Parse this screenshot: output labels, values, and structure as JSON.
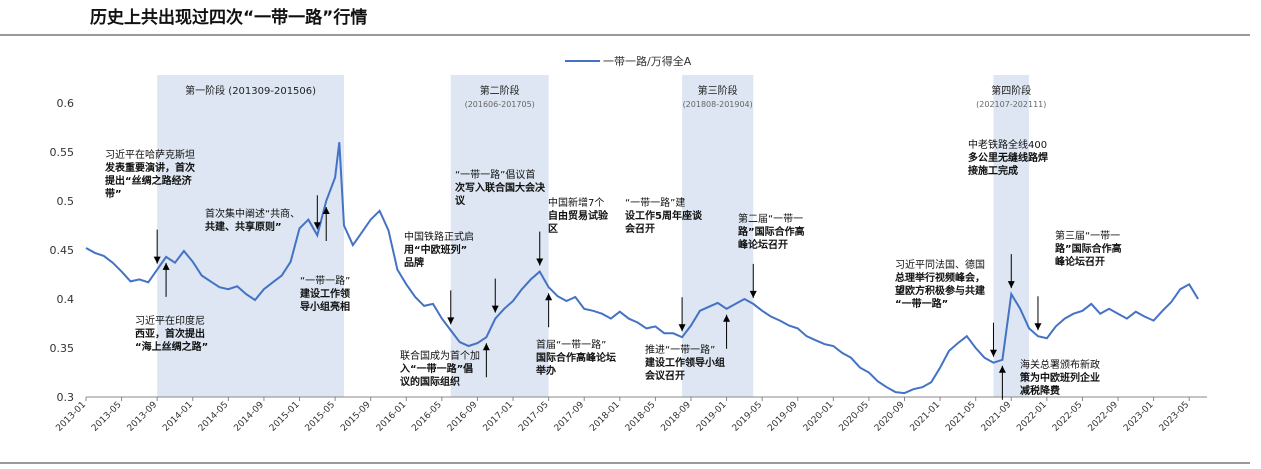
{
  "title": "历史上共出现过四次“一带一路”行情",
  "chart_data": {
    "type": "line",
    "legend": {
      "label": "一带一路/万得全A",
      "position": "top-center"
    },
    "ylim": [
      0.3,
      0.6
    ],
    "yticks": [
      "0.3",
      "0.35",
      "0.4",
      "0.45",
      "0.5",
      "0.55",
      "0.6"
    ],
    "xlim": [
      "2013-01",
      "2023-07"
    ],
    "xticks": [
      "2013-01",
      "2013-05",
      "2013-09",
      "2014-01",
      "2014-05",
      "2014-09",
      "2015-01",
      "2015-05",
      "2015-09",
      "2016-01",
      "2016-05",
      "2016-09",
      "2017-01",
      "2017-05",
      "2017-09",
      "2018-01",
      "2018-05",
      "2018-09",
      "2019-01",
      "2019-05",
      "2019-09",
      "2020-01",
      "2020-05",
      "2020-09",
      "2021-01",
      "2021-05",
      "2021-09",
      "2022-01",
      "2022-05",
      "2022-09",
      "2023-01",
      "2023-05"
    ],
    "series": [
      {
        "name": "一带一路/万得全A",
        "color": "#4472C4",
        "points": [
          [
            "2013-01",
            0.452
          ],
          [
            "2013-02",
            0.447
          ],
          [
            "2013-03",
            0.444
          ],
          [
            "2013-04",
            0.437
          ],
          [
            "2013-05",
            0.428
          ],
          [
            "2013-06",
            0.418
          ],
          [
            "2013-07",
            0.42
          ],
          [
            "2013-08",
            0.417
          ],
          [
            "2013-09",
            0.43
          ],
          [
            "2013-10",
            0.443
          ],
          [
            "2013-11",
            0.437
          ],
          [
            "2013-12",
            0.449
          ],
          [
            "2014-01",
            0.438
          ],
          [
            "2014-02",
            0.424
          ],
          [
            "2014-03",
            0.418
          ],
          [
            "2014-04",
            0.412
          ],
          [
            "2014-05",
            0.41
          ],
          [
            "2014-06",
            0.413
          ],
          [
            "2014-07",
            0.405
          ],
          [
            "2014-08",
            0.399
          ],
          [
            "2014-09",
            0.41
          ],
          [
            "2014-10",
            0.417
          ],
          [
            "2014-11",
            0.424
          ],
          [
            "2014-12",
            0.438
          ],
          [
            "2015-01",
            0.472
          ],
          [
            "2015-02",
            0.481
          ],
          [
            "2015-03",
            0.465
          ],
          [
            "2015-04",
            0.5
          ],
          [
            "2015-05",
            0.524
          ],
          [
            "2015-05-15",
            0.56
          ],
          [
            "2015-06",
            0.475
          ],
          [
            "2015-07",
            0.455
          ],
          [
            "2015-08",
            0.468
          ],
          [
            "2015-09",
            0.481
          ],
          [
            "2015-10",
            0.49
          ],
          [
            "2015-11",
            0.47
          ],
          [
            "2015-12",
            0.43
          ],
          [
            "2016-01",
            0.415
          ],
          [
            "2016-02",
            0.402
          ],
          [
            "2016-03",
            0.393
          ],
          [
            "2016-04",
            0.395
          ],
          [
            "2016-05",
            0.38
          ],
          [
            "2016-06",
            0.368
          ],
          [
            "2016-07",
            0.356
          ],
          [
            "2016-08",
            0.352
          ],
          [
            "2016-09",
            0.355
          ],
          [
            "2016-10",
            0.361
          ],
          [
            "2016-11",
            0.38
          ],
          [
            "2016-12",
            0.39
          ],
          [
            "2017-01",
            0.398
          ],
          [
            "2017-02",
            0.41
          ],
          [
            "2017-03",
            0.42
          ],
          [
            "2017-04",
            0.428
          ],
          [
            "2017-05",
            0.412
          ],
          [
            "2017-06",
            0.403
          ],
          [
            "2017-07",
            0.398
          ],
          [
            "2017-08",
            0.402
          ],
          [
            "2017-09",
            0.39
          ],
          [
            "2017-10",
            0.388
          ],
          [
            "2017-11",
            0.385
          ],
          [
            "2017-12",
            0.38
          ],
          [
            "2018-01",
            0.387
          ],
          [
            "2018-02",
            0.38
          ],
          [
            "2018-03",
            0.376
          ],
          [
            "2018-04",
            0.37
          ],
          [
            "2018-05",
            0.372
          ],
          [
            "2018-06",
            0.365
          ],
          [
            "2018-07",
            0.365
          ],
          [
            "2018-08",
            0.361
          ],
          [
            "2018-09",
            0.373
          ],
          [
            "2018-10",
            0.388
          ],
          [
            "2018-11",
            0.392
          ],
          [
            "2018-12",
            0.396
          ],
          [
            "2019-01",
            0.39
          ],
          [
            "2019-02",
            0.395
          ],
          [
            "2019-03",
            0.4
          ],
          [
            "2019-04",
            0.395
          ],
          [
            "2019-05",
            0.388
          ],
          [
            "2019-06",
            0.382
          ],
          [
            "2019-07",
            0.378
          ],
          [
            "2019-08",
            0.373
          ],
          [
            "2019-09",
            0.37
          ],
          [
            "2019-10",
            0.362
          ],
          [
            "2019-11",
            0.358
          ],
          [
            "2019-12",
            0.354
          ],
          [
            "2020-01",
            0.352
          ],
          [
            "2020-02",
            0.345
          ],
          [
            "2020-03",
            0.34
          ],
          [
            "2020-04",
            0.33
          ],
          [
            "2020-05",
            0.325
          ],
          [
            "2020-06",
            0.316
          ],
          [
            "2020-07",
            0.31
          ],
          [
            "2020-08",
            0.305
          ],
          [
            "2020-09",
            0.304
          ],
          [
            "2020-10",
            0.308
          ],
          [
            "2020-11",
            0.31
          ],
          [
            "2020-12",
            0.315
          ],
          [
            "2021-01",
            0.33
          ],
          [
            "2021-02",
            0.347
          ],
          [
            "2021-03",
            0.355
          ],
          [
            "2021-04",
            0.362
          ],
          [
            "2021-05",
            0.35
          ],
          [
            "2021-06",
            0.34
          ],
          [
            "2021-07",
            0.335
          ],
          [
            "2021-08",
            0.338
          ],
          [
            "2021-09",
            0.405
          ],
          [
            "2021-10",
            0.39
          ],
          [
            "2021-11",
            0.37
          ],
          [
            "2021-12",
            0.362
          ],
          [
            "2022-01",
            0.36
          ],
          [
            "2022-02",
            0.372
          ],
          [
            "2022-03",
            0.38
          ],
          [
            "2022-04",
            0.385
          ],
          [
            "2022-05",
            0.388
          ],
          [
            "2022-06",
            0.395
          ],
          [
            "2022-07",
            0.385
          ],
          [
            "2022-08",
            0.39
          ],
          [
            "2022-09",
            0.385
          ],
          [
            "2022-10",
            0.38
          ],
          [
            "2022-11",
            0.387
          ],
          [
            "2022-12",
            0.382
          ],
          [
            "2023-01",
            0.378
          ],
          [
            "2023-02",
            0.388
          ],
          [
            "2023-03",
            0.397
          ],
          [
            "2023-04",
            0.41
          ],
          [
            "2023-05",
            0.415
          ],
          [
            "2023-06",
            0.4
          ]
        ]
      }
    ],
    "phases": [
      {
        "label": "第一阶段 (201309-201506)",
        "start": "2013-09",
        "end": "2015-06"
      },
      {
        "label": "第二阶段",
        "sub": "(201606-201705)",
        "start": "2016-06",
        "end": "2017-05"
      },
      {
        "label": "第三阶段",
        "sub": "(201808-201904)",
        "start": "2018-08",
        "end": "2019-04"
      },
      {
        "label": "第四阶段",
        "sub": "(202107-202111)",
        "start": "2021-07",
        "end": "2021-11"
      }
    ],
    "annotations": [
      {
        "lines": [
          "习近平在哈萨克斯坦",
          "发表重要演讲，首次",
          "提出“丝绸之路经济",
          "带”"
        ],
        "at": "2013-09",
        "dir": "down"
      },
      {
        "lines": [
          "习近平在印度尼",
          "西亚，首次提出",
          "“海上丝绸之路”"
        ],
        "at": "2013-10",
        "dir": "up"
      },
      {
        "lines": [
          "首次集中阐述“共商、",
          "共建、共享原则”"
        ],
        "at": "2015-03",
        "dir": "down"
      },
      {
        "lines": [
          "“一带一路”",
          "建设工作领",
          "导小组亮相"
        ],
        "at": "2015-04",
        "dir": "up"
      },
      {
        "lines": [
          "中国铁路正式启",
          "用“中欧班列”",
          "品牌"
        ],
        "at": "2016-06",
        "dir": "down"
      },
      {
        "lines": [
          "联合国成为首个加",
          "入“一带一路”倡",
          "议的国际组织"
        ],
        "at": "2016-10",
        "dir": "up"
      },
      {
        "lines": [
          "“一带一路”倡议首",
          "次写入联合国大会决",
          "议"
        ],
        "at": "2016-11",
        "dir": "down"
      },
      {
        "lines": [
          "中国新增7个",
          "自由贸易试验",
          "区"
        ],
        "at": "2017-04",
        "dir": "down"
      },
      {
        "lines": [
          "首届“一带一路”",
          "国际合作高峰论坛",
          "举办"
        ],
        "at": "2017-05",
        "dir": "up"
      },
      {
        "lines": [
          "“一带一路”建",
          "设工作5周年座谈",
          "会召开"
        ],
        "at": "2018-08",
        "dir": "down"
      },
      {
        "lines": [
          "推进“一带一路”",
          "建设工作领导小组",
          "会议召开"
        ],
        "at": "2019-01",
        "dir": "up"
      },
      {
        "lines": [
          "第二届“一带一",
          "路”国际合作高",
          "峰论坛召开"
        ],
        "at": "2019-04",
        "dir": "down"
      },
      {
        "lines": [
          "习近平同法国、德国",
          "总理举行视频峰会，",
          "望欧方积极参与共建",
          "“一带一路”"
        ],
        "at": "2021-07",
        "dir": "down"
      },
      {
        "lines": [
          "中老铁路全线400",
          "多公里无缝线路焊",
          "接施工完成"
        ],
        "at": "2021-09",
        "dir": "down"
      },
      {
        "lines": [
          "海关总署颁布新政",
          "策为中欧班列企业",
          "减税降费"
        ],
        "at": "2021-08",
        "dir": "up"
      },
      {
        "lines": [
          "第三届“一带一",
          "路”国际合作高",
          "峰论坛召开"
        ],
        "at": "2021-12",
        "dir": "down"
      }
    ]
  }
}
